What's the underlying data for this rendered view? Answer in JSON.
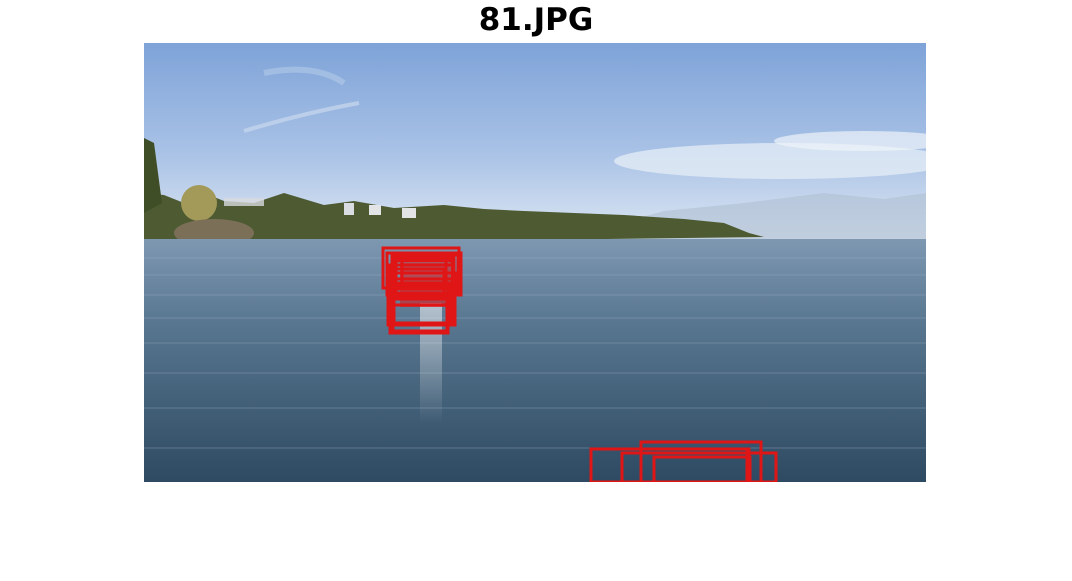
{
  "figure": {
    "title": "81.JPG"
  },
  "colors": {
    "detection_box": "#e01515",
    "sky_top": "#7ea3d8",
    "sky_horizon": "#dfe8f3",
    "water_far": "#6e8aa6",
    "water_near": "#2e4a63"
  },
  "detections": {
    "count_cluster_a": 14,
    "count_cluster_b": 5
  }
}
